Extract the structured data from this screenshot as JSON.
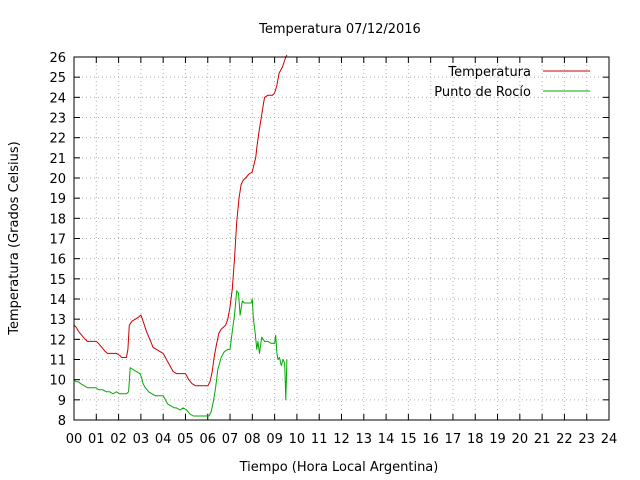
{
  "chart_data": {
    "type": "line",
    "title": "Temperatura 07/12/2016",
    "xlabel": "Tiempo (Hora Local Argentina)",
    "ylabel": "Temperatura (Grados Celsius)",
    "xlim": [
      0,
      24
    ],
    "ylim": [
      8,
      26
    ],
    "x_ticks": [
      "00",
      "01",
      "02",
      "03",
      "04",
      "05",
      "06",
      "07",
      "08",
      "09",
      "10",
      "11",
      "12",
      "13",
      "14",
      "15",
      "16",
      "17",
      "18",
      "19",
      "20",
      "21",
      "22",
      "23",
      "24"
    ],
    "y_ticks": [
      8,
      9,
      10,
      11,
      12,
      13,
      14,
      15,
      16,
      17,
      18,
      19,
      20,
      21,
      22,
      23,
      24,
      25,
      26
    ],
    "grid": true,
    "legend_position": "top-right",
    "series": [
      {
        "name": "Temperatura",
        "color": "#cc0000",
        "points": [
          [
            0.0,
            12.7
          ],
          [
            0.1,
            12.6
          ],
          [
            0.2,
            12.4
          ],
          [
            0.35,
            12.2
          ],
          [
            0.5,
            12.0
          ],
          [
            0.6,
            11.9
          ],
          [
            0.8,
            11.9
          ],
          [
            1.0,
            11.9
          ],
          [
            1.1,
            11.8
          ],
          [
            1.25,
            11.6
          ],
          [
            1.4,
            11.4
          ],
          [
            1.5,
            11.3
          ],
          [
            1.7,
            11.3
          ],
          [
            1.9,
            11.3
          ],
          [
            2.05,
            11.2
          ],
          [
            2.15,
            11.1
          ],
          [
            2.35,
            11.1
          ],
          [
            2.42,
            11.5
          ],
          [
            2.48,
            12.7
          ],
          [
            2.6,
            12.9
          ],
          [
            2.75,
            13.0
          ],
          [
            2.9,
            13.1
          ],
          [
            3.0,
            13.2
          ],
          [
            3.1,
            12.9
          ],
          [
            3.25,
            12.4
          ],
          [
            3.4,
            12.0
          ],
          [
            3.55,
            11.6
          ],
          [
            3.7,
            11.5
          ],
          [
            3.85,
            11.4
          ],
          [
            4.0,
            11.3
          ],
          [
            4.15,
            11.0
          ],
          [
            4.3,
            10.7
          ],
          [
            4.45,
            10.4
          ],
          [
            4.6,
            10.3
          ],
          [
            4.8,
            10.3
          ],
          [
            5.0,
            10.3
          ],
          [
            5.15,
            10.0
          ],
          [
            5.3,
            9.8
          ],
          [
            5.45,
            9.7
          ],
          [
            5.6,
            9.7
          ],
          [
            5.8,
            9.7
          ],
          [
            6.0,
            9.7
          ],
          [
            6.1,
            9.9
          ],
          [
            6.2,
            10.4
          ],
          [
            6.3,
            11.2
          ],
          [
            6.4,
            11.8
          ],
          [
            6.5,
            12.3
          ],
          [
            6.6,
            12.5
          ],
          [
            6.8,
            12.7
          ],
          [
            6.9,
            13.0
          ],
          [
            7.0,
            13.6
          ],
          [
            7.1,
            14.5
          ],
          [
            7.2,
            16.0
          ],
          [
            7.3,
            17.8
          ],
          [
            7.4,
            19.0
          ],
          [
            7.5,
            19.7
          ],
          [
            7.6,
            19.9
          ],
          [
            7.7,
            20.0
          ],
          [
            7.85,
            20.2
          ],
          [
            8.0,
            20.3
          ],
          [
            8.1,
            20.8
          ],
          [
            8.15,
            21.0
          ],
          [
            8.2,
            21.5
          ],
          [
            8.3,
            22.3
          ],
          [
            8.4,
            23.0
          ],
          [
            8.5,
            23.7
          ],
          [
            8.55,
            24.0
          ],
          [
            8.7,
            24.1
          ],
          [
            8.9,
            24.1
          ],
          [
            9.0,
            24.2
          ],
          [
            9.1,
            24.6
          ],
          [
            9.2,
            25.2
          ],
          [
            9.35,
            25.5
          ],
          [
            9.5,
            26.0
          ],
          [
            9.55,
            26.1
          ]
        ]
      },
      {
        "name": "Punto de Rocío",
        "color": "#00aa00",
        "points": [
          [
            0.0,
            10.0
          ],
          [
            0.1,
            9.9
          ],
          [
            0.2,
            9.9
          ],
          [
            0.3,
            9.8
          ],
          [
            0.45,
            9.7
          ],
          [
            0.6,
            9.6
          ],
          [
            0.8,
            9.6
          ],
          [
            1.0,
            9.6
          ],
          [
            1.1,
            9.5
          ],
          [
            1.3,
            9.5
          ],
          [
            1.45,
            9.4
          ],
          [
            1.6,
            9.4
          ],
          [
            1.75,
            9.3
          ],
          [
            1.9,
            9.4
          ],
          [
            2.05,
            9.3
          ],
          [
            2.2,
            9.3
          ],
          [
            2.35,
            9.3
          ],
          [
            2.45,
            9.4
          ],
          [
            2.52,
            10.6
          ],
          [
            2.65,
            10.5
          ],
          [
            2.8,
            10.4
          ],
          [
            2.95,
            10.3
          ],
          [
            3.0,
            10.2
          ],
          [
            3.1,
            9.8
          ],
          [
            3.2,
            9.6
          ],
          [
            3.35,
            9.4
          ],
          [
            3.5,
            9.3
          ],
          [
            3.65,
            9.2
          ],
          [
            3.8,
            9.2
          ],
          [
            4.0,
            9.2
          ],
          [
            4.1,
            9.0
          ],
          [
            4.2,
            8.8
          ],
          [
            4.35,
            8.7
          ],
          [
            4.5,
            8.6
          ],
          [
            4.6,
            8.6
          ],
          [
            4.75,
            8.5
          ],
          [
            4.9,
            8.6
          ],
          [
            5.05,
            8.5
          ],
          [
            5.2,
            8.3
          ],
          [
            5.35,
            8.2
          ],
          [
            5.5,
            8.2
          ],
          [
            5.7,
            8.2
          ],
          [
            5.9,
            8.2
          ],
          [
            6.05,
            8.2
          ],
          [
            6.15,
            8.4
          ],
          [
            6.25,
            8.9
          ],
          [
            6.35,
            9.6
          ],
          [
            6.45,
            10.5
          ],
          [
            6.6,
            11.1
          ],
          [
            6.75,
            11.4
          ],
          [
            6.9,
            11.5
          ],
          [
            7.0,
            11.5
          ],
          [
            7.1,
            12.4
          ],
          [
            7.2,
            13.2
          ],
          [
            7.3,
            14.4
          ],
          [
            7.38,
            14.3
          ],
          [
            7.45,
            13.2
          ],
          [
            7.55,
            13.9
          ],
          [
            7.65,
            13.8
          ],
          [
            7.8,
            13.8
          ],
          [
            7.95,
            13.8
          ],
          [
            8.0,
            14.0
          ],
          [
            8.05,
            13.0
          ],
          [
            8.12,
            12.4
          ],
          [
            8.2,
            11.5
          ],
          [
            8.25,
            11.9
          ],
          [
            8.32,
            11.3
          ],
          [
            8.42,
            12.1
          ],
          [
            8.55,
            11.9
          ],
          [
            8.7,
            11.9
          ],
          [
            8.85,
            11.8
          ],
          [
            9.0,
            11.8
          ],
          [
            9.05,
            12.2
          ],
          [
            9.1,
            11.3
          ],
          [
            9.15,
            11.0
          ],
          [
            9.22,
            11.1
          ],
          [
            9.3,
            10.7
          ],
          [
            9.38,
            11.0
          ],
          [
            9.45,
            10.8
          ],
          [
            9.5,
            9.0
          ],
          [
            9.55,
            11.0
          ]
        ]
      }
    ]
  }
}
